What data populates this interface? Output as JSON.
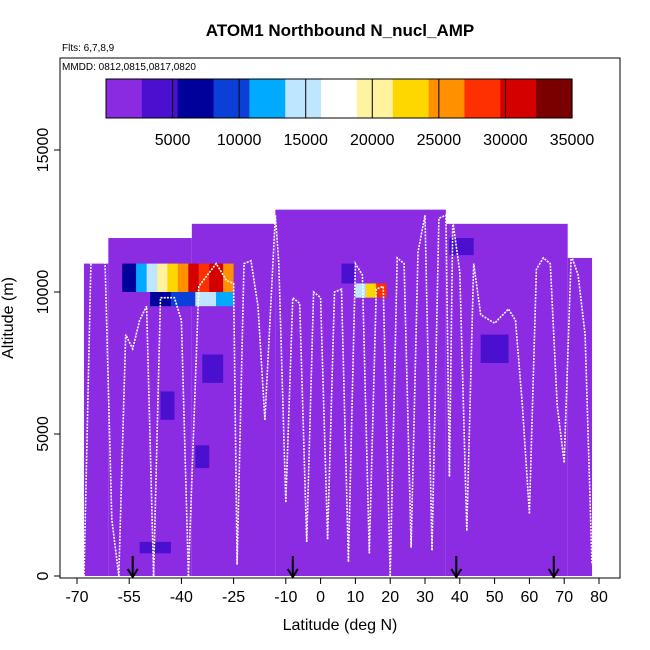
{
  "chart_data": {
    "type": "heatmap",
    "title": "ATOM1 Northbound N_nucl_AMP",
    "subtitle_flights": "Flts: 6,7,8,9",
    "subtitle_dates": "MMDD: 0812,0815,0817,0820",
    "xlabel": "Latitude (deg N)",
    "ylabel": "Altitude (m)",
    "xlim": [
      -70,
      80
    ],
    "ylim": [
      0,
      17500
    ],
    "x_ticks": [
      -70,
      -55,
      -40,
      -25,
      -10,
      0,
      10,
      20,
      30,
      40,
      50,
      60,
      70,
      80
    ],
    "x_tick_labels": [
      "-70",
      "-55",
      "-40",
      "-25",
      "-10",
      "0",
      "10",
      "20",
      "30",
      "40",
      "50",
      "60",
      "70",
      "80"
    ],
    "y_ticks": [
      0,
      5000,
      10000,
      15000
    ],
    "y_tick_labels": [
      "0",
      "5000",
      "10000",
      "15000"
    ],
    "colorbar": {
      "range": [
        0,
        35000
      ],
      "ticks": [
        5000,
        10000,
        15000,
        20000,
        25000,
        30000,
        35000
      ],
      "tick_labels": [
        "5000",
        "10000",
        "15000",
        "20000",
        "25000",
        "30000",
        "35000"
      ],
      "colors": [
        "#8a2be2",
        "#4b0fd0",
        "#00009a",
        "#0a3fd8",
        "#00aaff",
        "#bfe6ff",
        "#ffffff",
        "#fff3a0",
        "#ffd700",
        "#ff9000",
        "#ff3000",
        "#d40000",
        "#7a0000"
      ]
    },
    "background_color": "#8b2be2",
    "track_color": "#ffffff",
    "arrow_latitudes": [
      -54,
      -8,
      39,
      67
    ],
    "coverage_blocks": [
      {
        "lat0": -68,
        "lat1": -61,
        "alt0": 0,
        "alt1": 11000
      },
      {
        "lat0": -61,
        "lat1": -37,
        "alt0": 0,
        "alt1": 11900
      },
      {
        "lat0": -37,
        "lat1": -13,
        "alt0": 0,
        "alt1": 12400
      },
      {
        "lat0": -13,
        "lat1": 36,
        "alt0": 0,
        "alt1": 12900
      },
      {
        "lat0": 36,
        "lat1": 71,
        "alt0": 0,
        "alt1": 12400
      },
      {
        "lat0": 71,
        "lat1": 78,
        "alt0": 0,
        "alt1": 11200
      }
    ],
    "cells": [
      {
        "lat0": -57,
        "lat1": -53,
        "alt0": 10000,
        "alt1": 11000,
        "value": 6000
      },
      {
        "lat0": -53,
        "lat1": -50,
        "alt0": 10000,
        "alt1": 11000,
        "value": 12000
      },
      {
        "lat0": -50,
        "lat1": -47,
        "alt0": 10000,
        "alt1": 11000,
        "value": 16000
      },
      {
        "lat0": -47,
        "lat1": -44,
        "alt0": 10000,
        "alt1": 11000,
        "value": 19500
      },
      {
        "lat0": -44,
        "lat1": -41,
        "alt0": 10000,
        "alt1": 11000,
        "value": 23000
      },
      {
        "lat0": -41,
        "lat1": -38,
        "alt0": 10000,
        "alt1": 11000,
        "value": 27000
      },
      {
        "lat0": -38,
        "lat1": -35,
        "alt0": 10000,
        "alt1": 11000,
        "value": 32000
      },
      {
        "lat0": -35,
        "lat1": -32,
        "alt0": 10000,
        "alt1": 11000,
        "value": 30000
      },
      {
        "lat0": -32,
        "lat1": -28,
        "alt0": 10000,
        "alt1": 11000,
        "value": 33000
      },
      {
        "lat0": -28,
        "lat1": -25,
        "alt0": 10000,
        "alt1": 11000,
        "value": 26000
      },
      {
        "lat0": -49,
        "lat1": -43,
        "alt0": 9500,
        "alt1": 10000,
        "value": 5000
      },
      {
        "lat0": -43,
        "lat1": -36,
        "alt0": 9500,
        "alt1": 10000,
        "value": 9000
      },
      {
        "lat0": -36,
        "lat1": -30,
        "alt0": 9500,
        "alt1": 10000,
        "value": 14000
      },
      {
        "lat0": -30,
        "lat1": -25,
        "alt0": 9500,
        "alt1": 10000,
        "value": 11000
      },
      {
        "lat0": 6,
        "lat1": 10,
        "alt0": 10300,
        "alt1": 11000,
        "value": 3500
      },
      {
        "lat0": 10,
        "lat1": 13,
        "alt0": 9800,
        "alt1": 10300,
        "value": 14000
      },
      {
        "lat0": 13,
        "lat1": 16,
        "alt0": 9800,
        "alt1": 10300,
        "value": 24000
      },
      {
        "lat0": 16,
        "lat1": 19,
        "alt0": 9800,
        "alt1": 10300,
        "value": 29000
      },
      {
        "lat0": 37,
        "lat1": 44,
        "alt0": 11300,
        "alt1": 11900,
        "value": 3000
      },
      {
        "lat0": 46,
        "lat1": 54,
        "alt0": 7500,
        "alt1": 8500,
        "value": 3500
      },
      {
        "lat0": -46,
        "lat1": -42,
        "alt0": 5500,
        "alt1": 6500,
        "value": 2500
      },
      {
        "lat0": -34,
        "lat1": -28,
        "alt0": 6800,
        "alt1": 7800,
        "value": 3000
      },
      {
        "lat0": -36,
        "lat1": -32,
        "alt0": 3800,
        "alt1": 4600,
        "value": 2500
      },
      {
        "lat0": -52,
        "lat1": -43,
        "alt0": 800,
        "alt1": 1200,
        "value": 2200
      }
    ],
    "tracks": [
      [
        [
          -68,
          0
        ],
        [
          -66,
          11000
        ],
        [
          -64,
          11400
        ],
        [
          -62,
          11400
        ],
        [
          -60,
          2000
        ],
        [
          -58,
          0
        ]
      ],
      [
        [
          -58,
          0
        ],
        [
          -56,
          8500
        ],
        [
          -54,
          8000
        ],
        [
          -52,
          9000
        ],
        [
          -50,
          9500
        ],
        [
          -48,
          0
        ]
      ],
      [
        [
          -48,
          0
        ],
        [
          -46,
          9800
        ],
        [
          -42,
          9800
        ],
        [
          -40,
          9000
        ],
        [
          -38,
          0
        ]
      ],
      [
        [
          -38,
          0
        ],
        [
          -35,
          10200
        ],
        [
          -30,
          11000
        ],
        [
          -27,
          10400
        ],
        [
          -25,
          10300
        ],
        [
          -24,
          400
        ]
      ],
      [
        [
          -24,
          400
        ],
        [
          -22,
          11000
        ],
        [
          -20,
          11100
        ],
        [
          -18,
          9500
        ],
        [
          -16,
          5500
        ]
      ],
      [
        [
          -16,
          5500
        ],
        [
          -13,
          12700
        ],
        [
          -12,
          11000
        ],
        [
          -10,
          2600
        ]
      ],
      [
        [
          -10,
          2600
        ],
        [
          -8,
          9800
        ],
        [
          -6,
          9600
        ],
        [
          -4,
          1200
        ]
      ],
      [
        [
          -4,
          1200
        ],
        [
          -2,
          10000
        ],
        [
          0,
          9800
        ],
        [
          2,
          1300
        ]
      ],
      [
        [
          2,
          1300
        ],
        [
          4,
          10000
        ],
        [
          6,
          10100
        ],
        [
          8,
          500
        ]
      ],
      [
        [
          8,
          500
        ],
        [
          10,
          11000
        ],
        [
          12,
          10600
        ],
        [
          14,
          800
        ]
      ],
      [
        [
          14,
          800
        ],
        [
          16,
          10100
        ],
        [
          18,
          10200
        ],
        [
          20,
          0
        ]
      ],
      [
        [
          20,
          0
        ],
        [
          22,
          11200
        ],
        [
          24,
          11000
        ],
        [
          26,
          1000
        ]
      ],
      [
        [
          26,
          1000
        ],
        [
          28,
          11400
        ],
        [
          30,
          12700
        ],
        [
          32,
          900
        ]
      ],
      [
        [
          32,
          900
        ],
        [
          34,
          12600
        ],
        [
          36,
          12700
        ],
        [
          37,
          3500
        ]
      ],
      [
        [
          37,
          3500
        ],
        [
          38,
          12500
        ],
        [
          40,
          10700
        ],
        [
          42,
          1600
        ]
      ],
      [
        [
          42,
          1600
        ],
        [
          44,
          11000
        ],
        [
          46,
          9200
        ],
        [
          50,
          8900
        ],
        [
          54,
          9400
        ],
        [
          56,
          9000
        ],
        [
          58,
          6000
        ],
        [
          60,
          2200
        ]
      ],
      [
        [
          60,
          2200
        ],
        [
          62,
          10800
        ],
        [
          64,
          11200
        ],
        [
          66,
          11000
        ],
        [
          68,
          6000
        ],
        [
          70,
          4000
        ]
      ],
      [
        [
          70,
          4000
        ],
        [
          72,
          11300
        ],
        [
          74,
          10600
        ],
        [
          76,
          8500
        ],
        [
          78,
          400
        ]
      ]
    ]
  }
}
